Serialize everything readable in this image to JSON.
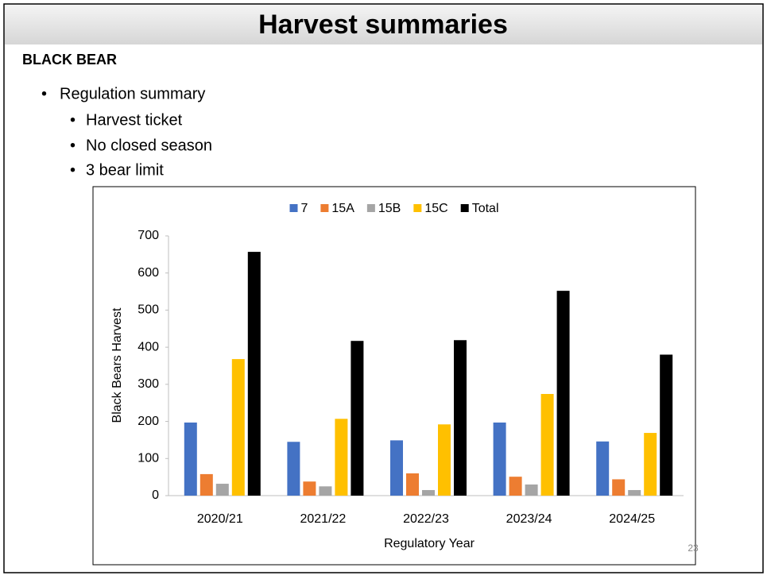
{
  "slide": {
    "title": "Harvest summaries",
    "heading": "BLACK BEAR",
    "bullets": [
      "Regulation summary"
    ],
    "sub_bullets": [
      "Harvest ticket",
      "No closed season",
      "3 bear limit"
    ],
    "page_number": "23"
  },
  "chart_data": {
    "type": "bar",
    "categories": [
      "2020/21",
      "2021/22",
      "2022/23",
      "2023/24",
      "2024/25"
    ],
    "series": [
      {
        "name": "7",
        "color": "#4472c4",
        "values": [
          197,
          145,
          149,
          197,
          146
        ]
      },
      {
        "name": "15A",
        "color": "#ed7d31",
        "values": [
          58,
          38,
          60,
          51,
          44
        ]
      },
      {
        "name": "15B",
        "color": "#a5a5a5",
        "values": [
          32,
          25,
          15,
          30,
          15
        ]
      },
      {
        "name": "15C",
        "color": "#ffc000",
        "values": [
          368,
          207,
          192,
          274,
          169
        ]
      },
      {
        "name": "Total",
        "color": "#000000",
        "values": [
          657,
          417,
          419,
          552,
          380
        ]
      }
    ],
    "x_label": "Regulatory Year",
    "y_label": "Black Bears Harvest",
    "ylim": [
      0,
      700
    ],
    "yticks": [
      0,
      100,
      200,
      300,
      400,
      500,
      600,
      700
    ],
    "grid": false,
    "legend": "top"
  }
}
